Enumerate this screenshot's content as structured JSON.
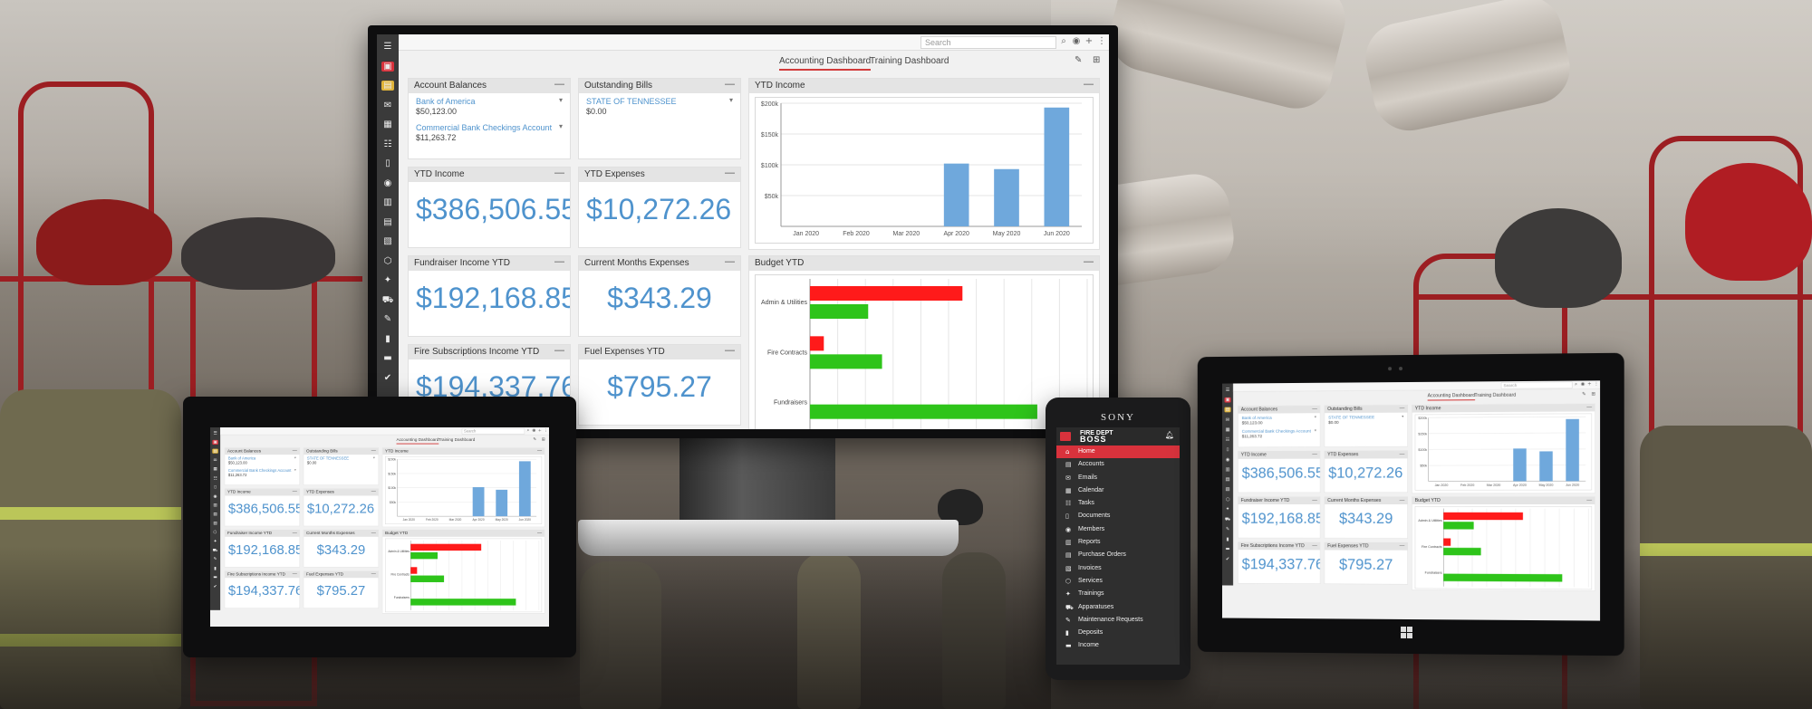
{
  "app": {
    "search_placeholder": "Search",
    "tabs": [
      "Accounting Dashboard",
      "Training Dashboard"
    ],
    "cards": {
      "account_balances": {
        "title": "Account Balances",
        "accounts": [
          {
            "name": "Bank of America",
            "balance": "$50,123.00"
          },
          {
            "name": "Commercial Bank Checkings Account",
            "balance": "$11,263.72"
          }
        ]
      },
      "outstanding_bills": {
        "title": "Outstanding Bills",
        "items": [
          {
            "name": "STATE OF TENNESSEE",
            "amount": "$0.00"
          }
        ]
      },
      "ytd_income_chart": {
        "title": "YTD Income"
      },
      "ytd_income": {
        "title": "YTD Income",
        "value": "$386,506.55"
      },
      "ytd_expenses": {
        "title": "YTD Expenses",
        "value": "$10,272.26"
      },
      "fundraiser_income": {
        "title": "Fundraiser Income YTD",
        "value": "$192,168.85"
      },
      "current_months_expenses": {
        "title": "Current Months Expenses",
        "value": "$343.29"
      },
      "budget_ytd": {
        "title": "Budget YTD"
      },
      "fire_subscriptions": {
        "title": "Fire Subscriptions Income YTD",
        "value": "$194,337.76"
      },
      "fuel_expenses": {
        "title": "Fuel Expenses YTD",
        "value": "$795.27"
      }
    },
    "minimize_symbol": "—"
  },
  "phone": {
    "brand": "SONY",
    "logo_top": "FIRE DEPT",
    "logo_bottom": "BOSS",
    "menu": [
      "Home",
      "Accounts",
      "Emails",
      "Calendar",
      "Tasks",
      "Documents",
      "Members",
      "Reports",
      "Purchase Orders",
      "Invoices",
      "Services",
      "Trainings",
      "Apparatuses",
      "Maintenance Requests",
      "Deposits",
      "Income"
    ],
    "active_index": 0
  },
  "chart_data": [
    {
      "type": "bar",
      "title": "YTD Income",
      "categories": [
        "Jan 2020",
        "Feb 2020",
        "Mar 2020",
        "Apr 2020",
        "May 2020",
        "Jun 2020"
      ],
      "values": [
        0,
        0,
        0,
        102000,
        93000,
        193000
      ],
      "ylim": [
        0,
        200000
      ],
      "yticks": [
        "$50k",
        "$100k",
        "$150k",
        "$200k"
      ],
      "ytick_values": [
        50000,
        100000,
        150000,
        200000
      ],
      "grid": true,
      "color": "#6fa8dc"
    },
    {
      "type": "bar",
      "orientation": "horizontal",
      "title": "Budget YTD",
      "categories": [
        "Admin & Utilities",
        "Fire Contracts",
        "Fundraisers"
      ],
      "series": [
        {
          "color": "#ff1a1a",
          "values": [
            0.55,
            0.05,
            0
          ]
        },
        {
          "color": "#2ec41a",
          "values": [
            0.21,
            0.26,
            0.82
          ]
        }
      ],
      "grid": true
    }
  ]
}
